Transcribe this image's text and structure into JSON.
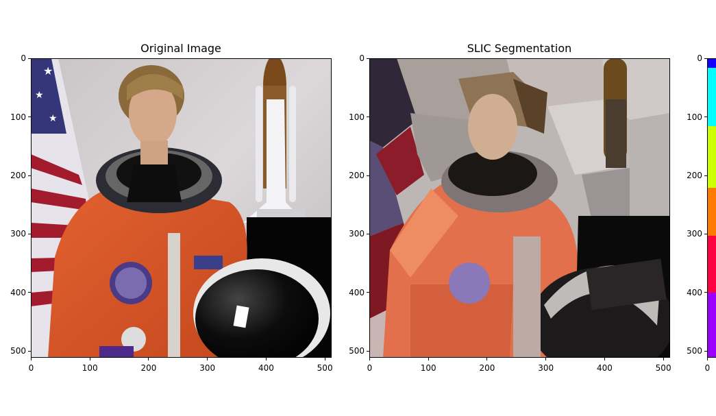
{
  "figure": {
    "panels": [
      {
        "title": "Original Image"
      },
      {
        "title": "SLIC Segmentation"
      },
      {
        "title": ""
      }
    ],
    "axes": {
      "x_ticks": [
        "0",
        "100",
        "200",
        "300",
        "400",
        "500"
      ],
      "y_ticks": [
        "0",
        "100",
        "200",
        "300",
        "400",
        "500"
      ],
      "third_x_ticks": [
        "0"
      ],
      "range": [
        0,
        512
      ]
    },
    "colorbar_colors": [
      "#1400ff",
      "#00ffff",
      "#ccff00",
      "#ff7a00",
      "#ff0040",
      "#9c00ff"
    ]
  }
}
